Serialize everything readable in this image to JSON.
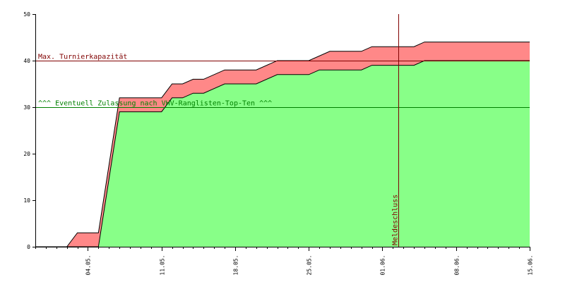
{
  "chart_data": {
    "type": "area",
    "x_axis": {
      "tick_labels": [
        "04.05.",
        "11.05.",
        "18.05.",
        "25.05.",
        "01.06.",
        "08.06.",
        "15.06."
      ],
      "range_days": [
        0,
        47
      ]
    },
    "y_axis": {
      "tick_labels": [
        "0",
        "10",
        "20",
        "30",
        "40",
        "50"
      ],
      "ylim": [
        0,
        50
      ]
    },
    "grid": false,
    "series": [
      {
        "color": "#ff8888",
        "edge_color": "#000000",
        "points": [
          [
            0,
            0
          ],
          [
            3,
            0
          ],
          [
            4,
            3
          ],
          [
            6,
            3
          ],
          [
            8,
            32
          ],
          [
            12,
            32
          ],
          [
            13,
            35
          ],
          [
            14,
            35
          ],
          [
            15,
            36
          ],
          [
            16,
            36
          ],
          [
            18,
            38
          ],
          [
            21,
            38
          ],
          [
            23,
            40
          ],
          [
            26,
            40
          ],
          [
            28,
            42
          ],
          [
            31,
            42
          ],
          [
            32,
            43
          ],
          [
            36,
            43
          ],
          [
            37,
            44
          ],
          [
            47,
            44
          ]
        ]
      },
      {
        "color": "#88ff88",
        "edge_color": "#000000",
        "points": [
          [
            0,
            0
          ],
          [
            6,
            0
          ],
          [
            8,
            29
          ],
          [
            12,
            29
          ],
          [
            13,
            32
          ],
          [
            14,
            32
          ],
          [
            15,
            33
          ],
          [
            16,
            33
          ],
          [
            18,
            35
          ],
          [
            21,
            35
          ],
          [
            23,
            37
          ],
          [
            26,
            37
          ],
          [
            27,
            38
          ],
          [
            31,
            38
          ],
          [
            32,
            39
          ],
          [
            36,
            39
          ],
          [
            37,
            40
          ],
          [
            47,
            40
          ]
        ]
      }
    ],
    "reference_lines": [
      {
        "orientation": "horizontal",
        "value": 40,
        "label": "Max. Turnierkapazität",
        "color": "#800000"
      },
      {
        "orientation": "horizontal",
        "value": 30,
        "label": "^^^ Eventuell Zulassung nach VHV-Ranglisten-Top-Ten ^^^",
        "color": "#008000"
      },
      {
        "orientation": "vertical",
        "value": 34.5,
        "label": "Meldeschluss",
        "color": "#800000"
      }
    ]
  }
}
